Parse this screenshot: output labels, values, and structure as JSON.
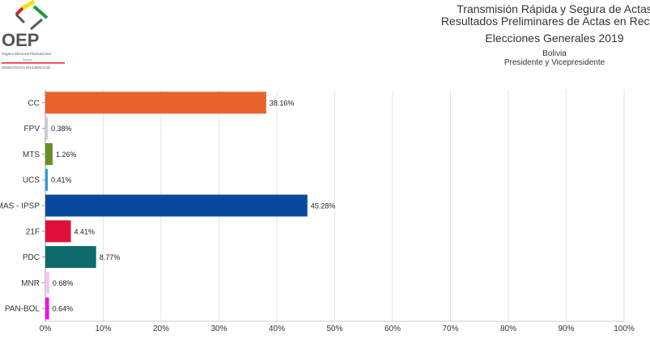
{
  "logo": {
    "acronym": "OEP",
    "name": "Órgano Electoral Plurinacional",
    "country": "Bolivia",
    "slogan": "DEMOCRACIA EN EJERCICIO"
  },
  "header": {
    "line1": "Transmisión Rápida y Segura de Actas",
    "line2": "Resultados Preliminares de Actas en Recinto",
    "line3": "Elecciones Generales 2019",
    "line4": "Bolivia",
    "line5": "Presidente y Vicepresidente"
  },
  "chart_data": {
    "type": "bar",
    "orientation": "horizontal",
    "categories": [
      "CC",
      "FPV",
      "MTS",
      "UCS",
      "MAS - IPSP",
      "21F",
      "PDC",
      "MNR",
      "PAN-BOL"
    ],
    "values": [
      38.16,
      0.38,
      1.26,
      0.41,
      45.28,
      4.41,
      8.77,
      0.68,
      0.64
    ],
    "labels": [
      "38.16%",
      "0.38%",
      "1.26%",
      "0.41%",
      "45.28%",
      "4.41%",
      "8.77%",
      "0.68%",
      "0.64%"
    ],
    "colors": [
      "#e8632b",
      "#cccccc",
      "#6b8e23",
      "#1ea0d8",
      "#0a4a9e",
      "#e0103a",
      "#0e6b6b",
      "#f5c6ef",
      "#ee10ee"
    ],
    "xlim": [
      0,
      100
    ],
    "xticks": [
      "0%",
      "10%",
      "20%",
      "30%",
      "40%",
      "50%",
      "60%",
      "70%",
      "80%",
      "90%",
      "100%"
    ],
    "grid": true
  }
}
